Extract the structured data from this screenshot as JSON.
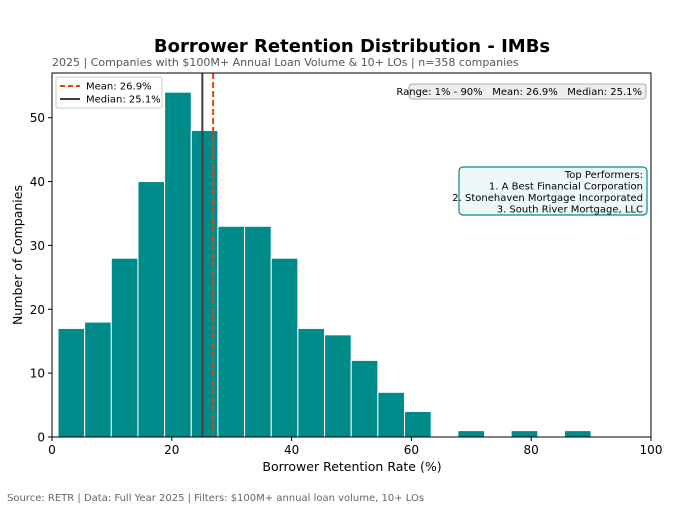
{
  "chart_data": {
    "type": "bar",
    "title": "Borrower Retention Distribution - IMBs",
    "subtitle": "2025 | Companies with $100M+ Annual Loan Volume & 10+ LOs | n=358 companies",
    "xlabel": "Borrower Retention Rate (%)",
    "ylabel": "Number of Companies",
    "xlim": [
      0,
      100
    ],
    "ylim": [
      0,
      57
    ],
    "xticks": [
      0,
      20,
      40,
      60,
      80,
      100
    ],
    "yticks": [
      0,
      10,
      20,
      30,
      40,
      50
    ],
    "bins": [
      {
        "start": 1.0,
        "end": 5.45,
        "count": 17
      },
      {
        "start": 5.45,
        "end": 9.9,
        "count": 18
      },
      {
        "start": 9.9,
        "end": 14.35,
        "count": 28
      },
      {
        "start": 14.35,
        "end": 18.8,
        "count": 40
      },
      {
        "start": 18.8,
        "end": 23.25,
        "count": 54
      },
      {
        "start": 23.25,
        "end": 27.7,
        "count": 48
      },
      {
        "start": 27.7,
        "end": 32.15,
        "count": 33
      },
      {
        "start": 32.15,
        "end": 36.6,
        "count": 33
      },
      {
        "start": 36.6,
        "end": 41.05,
        "count": 28
      },
      {
        "start": 41.05,
        "end": 45.5,
        "count": 17
      },
      {
        "start": 45.5,
        "end": 49.95,
        "count": 16
      },
      {
        "start": 49.95,
        "end": 54.4,
        "count": 12
      },
      {
        "start": 54.4,
        "end": 58.85,
        "count": 7
      },
      {
        "start": 58.85,
        "end": 63.3,
        "count": 4
      },
      {
        "start": 63.3,
        "end": 67.75,
        "count": 0
      },
      {
        "start": 67.75,
        "end": 72.2,
        "count": 1
      },
      {
        "start": 72.2,
        "end": 76.65,
        "count": 0
      },
      {
        "start": 76.65,
        "end": 81.1,
        "count": 1
      },
      {
        "start": 81.1,
        "end": 85.55,
        "count": 0
      },
      {
        "start": 85.55,
        "end": 90.0,
        "count": 1
      }
    ],
    "bar_color": "#008b8b",
    "mean": {
      "value": 26.9,
      "label": "Mean: 26.9%",
      "color": "#e0440e"
    },
    "median": {
      "value": 25.1,
      "label": "Median: 25.1%",
      "color": "#404040"
    },
    "legend_position": "top-left",
    "stats_text": "Range: 1% - 90%   Mean: 26.9%   Median: 25.1%",
    "top_performers": {
      "heading": "Top Performers:",
      "items": [
        "1. A Best Financial Corporation",
        "2. Stonehaven Mortgage Incorporated",
        "3. South River Mortgage, LLC"
      ]
    },
    "grid": false
  },
  "source": "Source: RETR | Data: Full Year 2025 | Filters: $100M+ annual loan volume, 10+ LOs"
}
